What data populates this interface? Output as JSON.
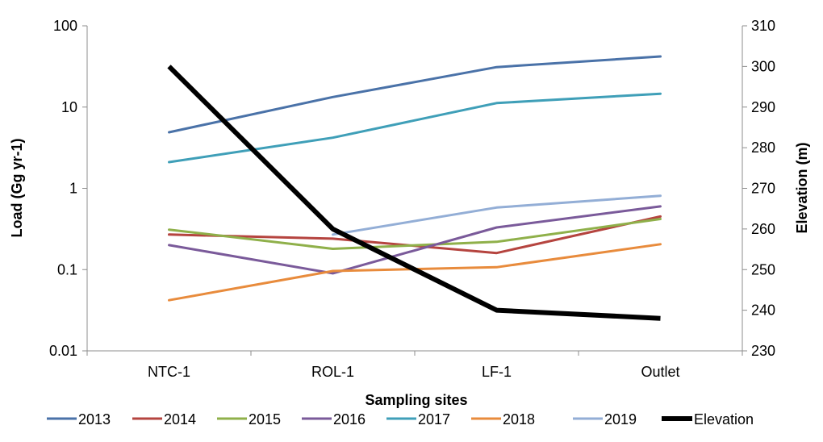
{
  "chart_data": {
    "type": "line",
    "categories": [
      "NTC-1",
      "ROL-1",
      "LF-1",
      "Outlet"
    ],
    "xlabel": "Sampling sites",
    "ylabel": "Load (Gg yr-1)",
    "y2label": "Elevation (m)",
    "y_scale": "log",
    "ylim": [
      0.01,
      100
    ],
    "y_ticks": [
      "0.01",
      "0.1",
      "1",
      "10",
      "100"
    ],
    "y2lim": [
      230,
      310
    ],
    "y2_ticks": [
      "230",
      "240",
      "250",
      "260",
      "270",
      "280",
      "290",
      "300",
      "310"
    ],
    "grid": "none",
    "legend_position": "bottom",
    "series": [
      {
        "name": "2013",
        "axis": "left",
        "color": "#4a72a8",
        "values": [
          4.9,
          13.3,
          31,
          42
        ]
      },
      {
        "name": "2014",
        "axis": "left",
        "color": "#b5443f",
        "values": [
          0.27,
          0.24,
          0.16,
          0.45
        ]
      },
      {
        "name": "2015",
        "axis": "left",
        "color": "#8fb04a",
        "values": [
          0.31,
          0.18,
          0.22,
          0.42
        ]
      },
      {
        "name": "2016",
        "axis": "left",
        "color": "#7a5a9a",
        "values": [
          0.2,
          0.09,
          0.33,
          0.6
        ]
      },
      {
        "name": "2017",
        "axis": "left",
        "color": "#3f9fb8",
        "values": [
          2.1,
          4.2,
          11.2,
          14.6
        ]
      },
      {
        "name": "2018",
        "axis": "left",
        "color": "#e88b3c",
        "values": [
          0.042,
          0.096,
          0.107,
          0.205
        ]
      },
      {
        "name": "2019",
        "axis": "left",
        "color": "#93aed6",
        "values": [
          null,
          0.27,
          0.58,
          0.81
        ]
      },
      {
        "name": "Elevation",
        "axis": "right",
        "color": "#000000",
        "values": [
          300,
          260,
          240,
          238
        ]
      }
    ]
  }
}
